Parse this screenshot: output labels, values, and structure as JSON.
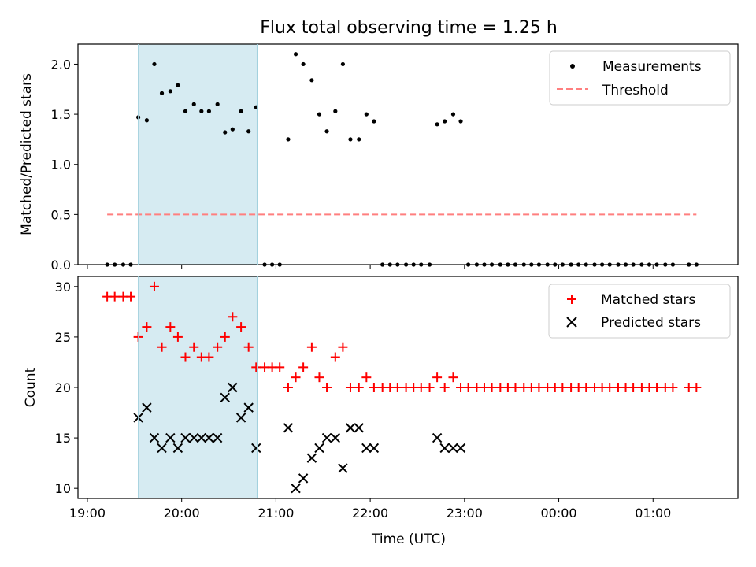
{
  "chart_data": {
    "title": "Flux total observing time = 1.25 h",
    "xlabel": "Time (UTC)",
    "x_unit": "hours since 19:00 UTC",
    "xlim": [
      -0.1,
      6.9
    ],
    "xticks": [
      {
        "value": 0,
        "label": "19:00"
      },
      {
        "value": 1,
        "label": "20:00"
      },
      {
        "value": 2,
        "label": "21:00"
      },
      {
        "value": 3,
        "label": "22:00"
      },
      {
        "value": 4,
        "label": "23:00"
      },
      {
        "value": 5,
        "label": "00:00"
      },
      {
        "value": 6,
        "label": "01:00"
      }
    ],
    "shaded_span": {
      "x0": 0.54,
      "x1": 1.8,
      "color": "#add8e6"
    },
    "top_panel": {
      "type": "scatter",
      "ylabel": "Matched/Predicted stars",
      "ylim": [
        0,
        2.2
      ],
      "yticks": [
        "0.0",
        "0.5",
        "1.0",
        "1.5",
        "2.0"
      ],
      "legend_position": "top-right",
      "series": [
        {
          "name": "Measurements",
          "color": "#000000",
          "marker": "dot",
          "points": [
            [
              0.21,
              0
            ],
            [
              0.29,
              0
            ],
            [
              0.38,
              0
            ],
            [
              0.46,
              0
            ],
            [
              0.54,
              1.47
            ],
            [
              0.63,
              1.44
            ],
            [
              0.71,
              2.0
            ],
            [
              0.79,
              1.71
            ],
            [
              0.88,
              1.73
            ],
            [
              0.96,
              1.79
            ],
            [
              1.04,
              1.53
            ],
            [
              1.13,
              1.6
            ],
            [
              1.21,
              1.53
            ],
            [
              1.29,
              1.53
            ],
            [
              1.38,
              1.6
            ],
            [
              1.46,
              1.32
            ],
            [
              1.54,
              1.35
            ],
            [
              1.63,
              1.53
            ],
            [
              1.71,
              1.33
            ],
            [
              1.79,
              1.57
            ],
            [
              1.88,
              0
            ],
            [
              1.96,
              0
            ],
            [
              2.04,
              0
            ],
            [
              2.13,
              1.25
            ],
            [
              2.21,
              2.1
            ],
            [
              2.29,
              2.0
            ],
            [
              2.38,
              1.84
            ],
            [
              2.46,
              1.5
            ],
            [
              2.54,
              1.33
            ],
            [
              2.63,
              1.53
            ],
            [
              2.71,
              2.0
            ],
            [
              2.79,
              1.25
            ],
            [
              2.88,
              1.25
            ],
            [
              2.96,
              1.5
            ],
            [
              3.04,
              1.43
            ],
            [
              3.13,
              0
            ],
            [
              3.21,
              0
            ],
            [
              3.29,
              0
            ],
            [
              3.38,
              0
            ],
            [
              3.46,
              0
            ],
            [
              3.54,
              0
            ],
            [
              3.63,
              0
            ],
            [
              3.71,
              1.4
            ],
            [
              3.79,
              1.43
            ],
            [
              3.88,
              1.5
            ],
            [
              3.96,
              1.43
            ],
            [
              4.04,
              0
            ],
            [
              4.13,
              0
            ],
            [
              4.21,
              0
            ],
            [
              4.29,
              0
            ],
            [
              4.38,
              0
            ],
            [
              4.46,
              0
            ],
            [
              4.54,
              0
            ],
            [
              4.63,
              0
            ],
            [
              4.71,
              0
            ],
            [
              4.79,
              0
            ],
            [
              4.88,
              0
            ],
            [
              4.96,
              0
            ],
            [
              5.04,
              0
            ],
            [
              5.13,
              0
            ],
            [
              5.21,
              0
            ],
            [
              5.29,
              0
            ],
            [
              5.38,
              0
            ],
            [
              5.46,
              0
            ],
            [
              5.54,
              0
            ],
            [
              5.63,
              0
            ],
            [
              5.71,
              0
            ],
            [
              5.79,
              0
            ],
            [
              5.88,
              0
            ],
            [
              5.96,
              0
            ],
            [
              6.04,
              0
            ],
            [
              6.13,
              0
            ],
            [
              6.21,
              0
            ],
            [
              6.38,
              0
            ],
            [
              6.46,
              0
            ]
          ]
        },
        {
          "name": "Threshold",
          "color": "#ff7f7f",
          "line": "dashed",
          "points": [
            [
              0.21,
              0.5
            ],
            [
              6.46,
              0.5
            ]
          ]
        }
      ]
    },
    "bottom_panel": {
      "type": "scatter",
      "ylabel": "Count",
      "ylim": [
        9,
        31
      ],
      "yticks": [
        "10",
        "15",
        "20",
        "25",
        "30"
      ],
      "legend_position": "top-right",
      "series": [
        {
          "name": "Matched stars",
          "color": "#ff0000",
          "marker": "plus",
          "points": [
            [
              0.21,
              29
            ],
            [
              0.29,
              29
            ],
            [
              0.38,
              29
            ],
            [
              0.46,
              29
            ],
            [
              0.54,
              25
            ],
            [
              0.63,
              26
            ],
            [
              0.71,
              30
            ],
            [
              0.79,
              24
            ],
            [
              0.88,
              26
            ],
            [
              0.96,
              25
            ],
            [
              1.04,
              23
            ],
            [
              1.13,
              24
            ],
            [
              1.21,
              23
            ],
            [
              1.29,
              23
            ],
            [
              1.38,
              24
            ],
            [
              1.46,
              25
            ],
            [
              1.54,
              27
            ],
            [
              1.63,
              26
            ],
            [
              1.71,
              24
            ],
            [
              1.79,
              22
            ],
            [
              1.88,
              22
            ],
            [
              1.96,
              22
            ],
            [
              2.04,
              22
            ],
            [
              2.13,
              20
            ],
            [
              2.21,
              21
            ],
            [
              2.29,
              22
            ],
            [
              2.38,
              24
            ],
            [
              2.46,
              21
            ],
            [
              2.54,
              20
            ],
            [
              2.63,
              23
            ],
            [
              2.71,
              24
            ],
            [
              2.79,
              20
            ],
            [
              2.88,
              20
            ],
            [
              2.96,
              21
            ],
            [
              3.04,
              20
            ],
            [
              3.13,
              20
            ],
            [
              3.21,
              20
            ],
            [
              3.29,
              20
            ],
            [
              3.38,
              20
            ],
            [
              3.46,
              20
            ],
            [
              3.54,
              20
            ],
            [
              3.63,
              20
            ],
            [
              3.71,
              21
            ],
            [
              3.79,
              20
            ],
            [
              3.88,
              21
            ],
            [
              3.96,
              20
            ],
            [
              4.04,
              20
            ],
            [
              4.13,
              20
            ],
            [
              4.21,
              20
            ],
            [
              4.29,
              20
            ],
            [
              4.38,
              20
            ],
            [
              4.46,
              20
            ],
            [
              4.54,
              20
            ],
            [
              4.63,
              20
            ],
            [
              4.71,
              20
            ],
            [
              4.79,
              20
            ],
            [
              4.88,
              20
            ],
            [
              4.96,
              20
            ],
            [
              5.04,
              20
            ],
            [
              5.13,
              20
            ],
            [
              5.21,
              20
            ],
            [
              5.29,
              20
            ],
            [
              5.38,
              20
            ],
            [
              5.46,
              20
            ],
            [
              5.54,
              20
            ],
            [
              5.63,
              20
            ],
            [
              5.71,
              20
            ],
            [
              5.79,
              20
            ],
            [
              5.88,
              20
            ],
            [
              5.96,
              20
            ],
            [
              6.04,
              20
            ],
            [
              6.13,
              20
            ],
            [
              6.21,
              20
            ],
            [
              6.38,
              20
            ],
            [
              6.46,
              20
            ]
          ]
        },
        {
          "name": "Predicted stars",
          "color": "#000000",
          "marker": "x",
          "points": [
            [
              0.54,
              17
            ],
            [
              0.63,
              18
            ],
            [
              0.71,
              15
            ],
            [
              0.79,
              14
            ],
            [
              0.88,
              15
            ],
            [
              0.96,
              14
            ],
            [
              1.04,
              15
            ],
            [
              1.13,
              15
            ],
            [
              1.21,
              15
            ],
            [
              1.29,
              15
            ],
            [
              1.38,
              15
            ],
            [
              1.46,
              19
            ],
            [
              1.54,
              20
            ],
            [
              1.63,
              17
            ],
            [
              1.71,
              18
            ],
            [
              1.79,
              14
            ],
            [
              2.13,
              16
            ],
            [
              2.21,
              10
            ],
            [
              2.29,
              11
            ],
            [
              2.38,
              13
            ],
            [
              2.46,
              14
            ],
            [
              2.54,
              15
            ],
            [
              2.63,
              15
            ],
            [
              2.71,
              12
            ],
            [
              2.79,
              16
            ],
            [
              2.88,
              16
            ],
            [
              2.96,
              14
            ],
            [
              3.04,
              14
            ],
            [
              3.71,
              15
            ],
            [
              3.79,
              14
            ],
            [
              3.88,
              14
            ],
            [
              3.96,
              14
            ]
          ]
        }
      ]
    }
  }
}
